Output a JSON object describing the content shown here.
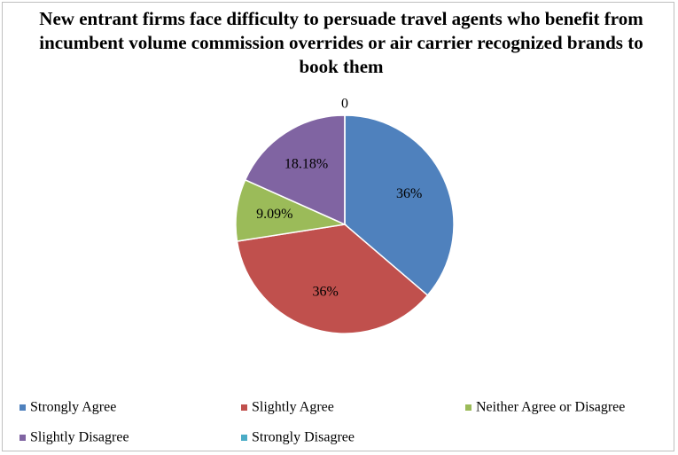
{
  "chart_data": {
    "type": "pie",
    "title": "New entrant firms face difficulty to persuade travel agents who benefit from incumbent volume commission overrides or air carrier recognized brands to book them",
    "categories": [
      "Strongly Agree",
      "Slightly Agree",
      "Neither Agree or Disagree",
      "Slightly Disagree",
      "Strongly Disagree"
    ],
    "values": [
      36,
      36,
      9.09,
      18.18,
      0
    ],
    "value_labels": [
      "36%",
      "36%",
      "9.09%",
      "18.18%",
      "0"
    ],
    "colors": [
      "#4f81bd",
      "#c0504d",
      "#9bbb59",
      "#8064a2",
      "#4bacc6"
    ],
    "legend": "bottom"
  }
}
